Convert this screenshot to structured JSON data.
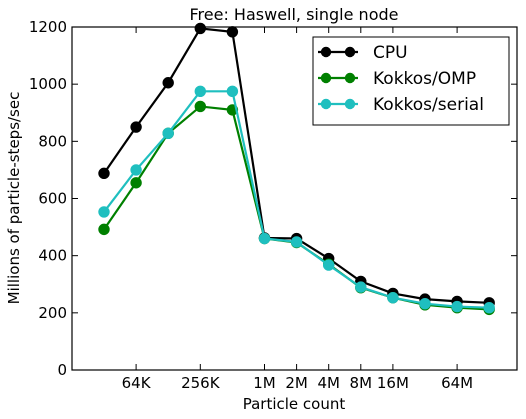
{
  "chart_data": {
    "type": "line",
    "title": "Free: Haswell, single node",
    "xlabel": "Particle count",
    "ylabel": "Millions of particle-steps/sec",
    "x_scale": "log2",
    "x_categories": [
      "32K",
      "64K",
      "128K",
      "256K",
      "512K",
      "1M",
      "2M",
      "4M",
      "8M",
      "16M",
      "32M",
      "64M",
      "128M"
    ],
    "x_tick_labels": [
      {
        "x": "64K",
        "label": "64K"
      },
      {
        "x": "256K",
        "label": "256K"
      },
      {
        "x": "1M",
        "label": "1M"
      },
      {
        "x": "2M",
        "label": "2M"
      },
      {
        "x": "4M",
        "label": "4M"
      },
      {
        "x": "8M",
        "label": "8M"
      },
      {
        "x": "16M",
        "label": "16M"
      },
      {
        "x": "64M",
        "label": "64M"
      }
    ],
    "ylim": [
      0,
      1200
    ],
    "y_ticks": [
      0,
      200,
      400,
      600,
      800,
      1000,
      1200
    ],
    "grid": false,
    "legend_position": "top-right",
    "series": [
      {
        "name": "CPU",
        "color": "#000000",
        "values": [
          688,
          850,
          1005,
          1195,
          1183,
          462,
          460,
          390,
          310,
          268,
          248,
          240,
          235
        ]
      },
      {
        "name": "Kokkos/OMP",
        "color": "#008000",
        "values": [
          492,
          655,
          828,
          922,
          910,
          460,
          446,
          370,
          288,
          253,
          228,
          218,
          212
        ]
      },
      {
        "name": "Kokkos/serial",
        "color": "#1fbfbf",
        "values": [
          553,
          700,
          828,
          975,
          975,
          460,
          448,
          367,
          290,
          253,
          232,
          222,
          218
        ]
      }
    ]
  }
}
